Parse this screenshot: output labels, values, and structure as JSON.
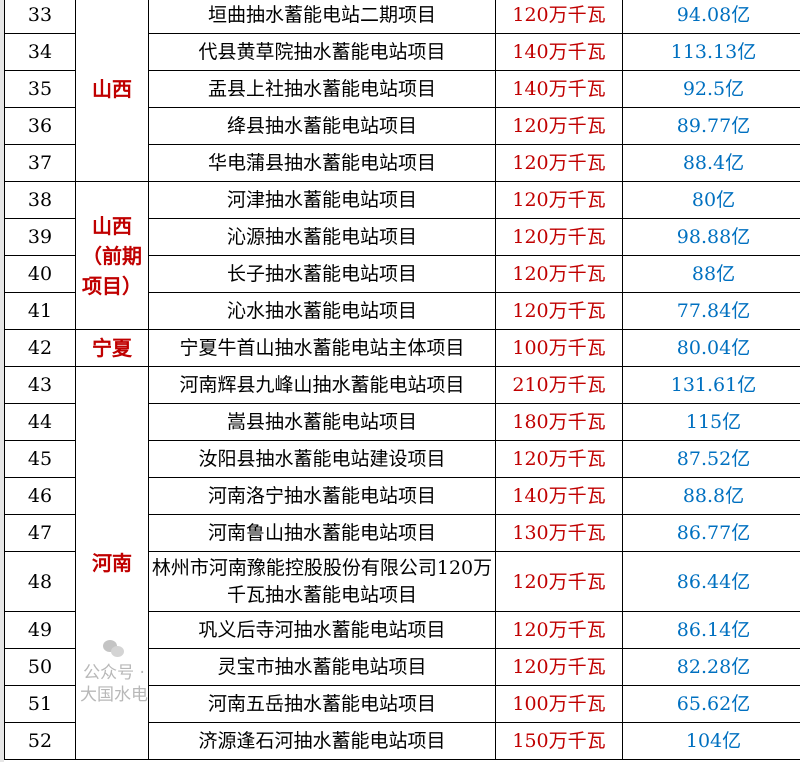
{
  "rows": [
    {
      "no": "33",
      "name": "垣曲抽水蓄能电站二期项目",
      "capacity": "120万千瓦",
      "investment": "94.08亿"
    },
    {
      "no": "34",
      "name": "代县黄草院抽水蓄能电站项目",
      "capacity": "140万千瓦",
      "investment": "113.13亿"
    },
    {
      "no": "35",
      "name": "盂县上社抽水蓄能电站项目",
      "capacity": "140万千瓦",
      "investment": "92.5亿"
    },
    {
      "no": "36",
      "name": "绛县抽水蓄能电站项目",
      "capacity": "120万千瓦",
      "investment": "89.77亿"
    },
    {
      "no": "37",
      "name": "华电蒲县抽水蓄能电站项目",
      "capacity": "120万千瓦",
      "investment": "88.4亿"
    },
    {
      "no": "38",
      "name": "河津抽水蓄能电站项目",
      "capacity": "120万千瓦",
      "investment": "80亿"
    },
    {
      "no": "39",
      "name": "沁源抽水蓄能电站项目",
      "capacity": "120万千瓦",
      "investment": "98.88亿"
    },
    {
      "no": "40",
      "name": "长子抽水蓄能电站项目",
      "capacity": "120万千瓦",
      "investment": "88亿"
    },
    {
      "no": "41",
      "name": "沁水抽水蓄能电站项目",
      "capacity": "120万千瓦",
      "investment": "77.84亿"
    },
    {
      "no": "42",
      "name": "宁夏牛首山抽水蓄能电站主体项目",
      "capacity": "100万千瓦",
      "investment": "80.04亿"
    },
    {
      "no": "43",
      "name": "河南辉县九峰山抽水蓄能电站项目",
      "capacity": "210万千瓦",
      "investment": "131.61亿"
    },
    {
      "no": "44",
      "name": "嵩县抽水蓄能电站项目",
      "capacity": "180万千瓦",
      "investment": "115亿"
    },
    {
      "no": "45",
      "name": "汝阳县抽水蓄能电站建设项目",
      "capacity": "120万千瓦",
      "investment": "87.52亿"
    },
    {
      "no": "46",
      "name": "河南洛宁抽水蓄能电站项目",
      "capacity": "140万千瓦",
      "investment": "88.8亿"
    },
    {
      "no": "47",
      "name": "河南鲁山抽水蓄能电站项目",
      "capacity": "130万千瓦",
      "investment": "86.77亿"
    },
    {
      "no": "48",
      "name": "林州市河南豫能控股股份有限公司120万千瓦抽水蓄能电站项目",
      "capacity": "120万千瓦",
      "investment": "86.44亿"
    },
    {
      "no": "49",
      "name": "巩义后寺河抽水蓄能电站项目",
      "capacity": "120万千瓦",
      "investment": "86.14亿"
    },
    {
      "no": "50",
      "name": "灵宝市抽水蓄能电站项目",
      "capacity": "120万千瓦",
      "investment": "82.28亿"
    },
    {
      "no": "51",
      "name": "河南五岳抽水蓄能电站项目",
      "capacity": "100万千瓦",
      "investment": "65.62亿"
    },
    {
      "no": "52",
      "name": "济源逢石河抽水蓄能电站项目",
      "capacity": "150万千瓦",
      "investment": "104亿"
    }
  ],
  "regions": [
    {
      "label": "山西",
      "span": 5
    },
    {
      "label": "山西（前期项目）",
      "span": 4
    },
    {
      "label": "宁夏",
      "span": 1
    },
    {
      "label": "河南",
      "span": 10
    }
  ],
  "watermark": {
    "text": "公众号 · 大国水电",
    "icon": "wechat-icon"
  },
  "colors": {
    "region": "#c00000",
    "capacity": "#c00000",
    "investment": "#0070c0"
  }
}
